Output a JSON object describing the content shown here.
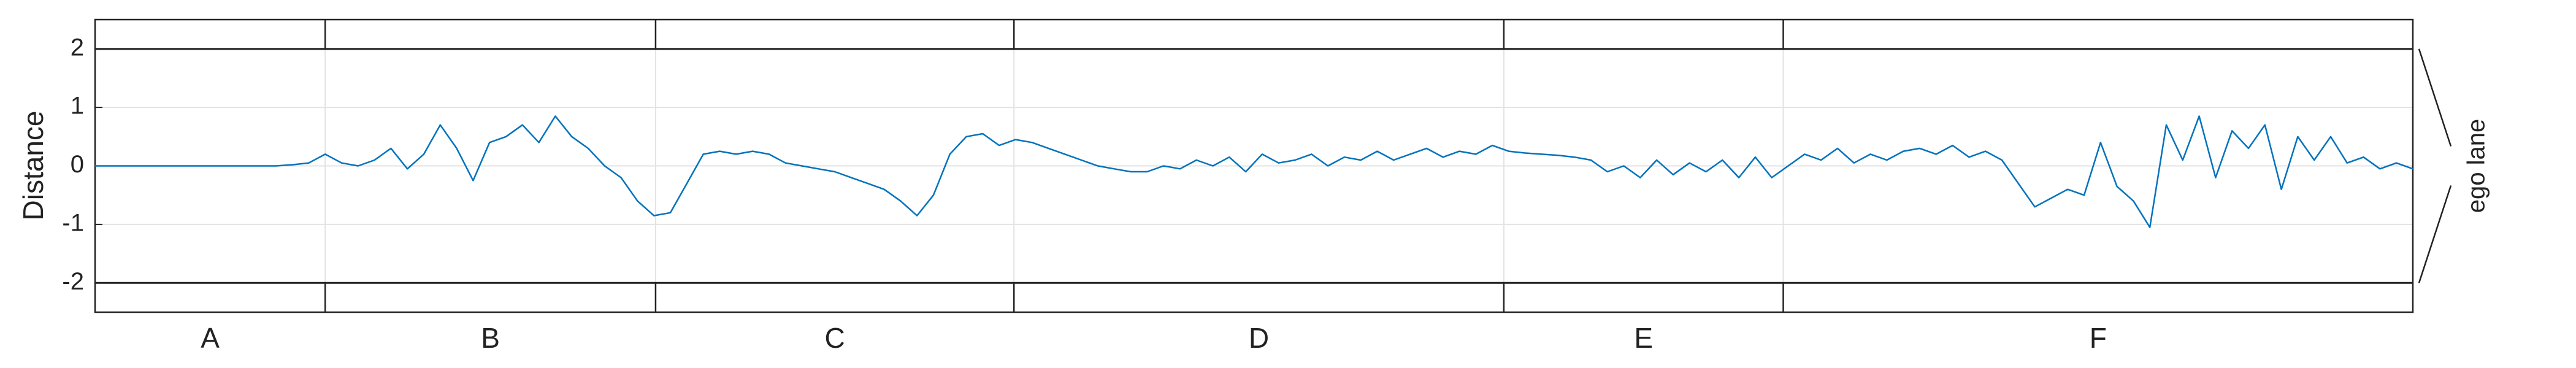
{
  "chart_data": {
    "type": "line",
    "y_label": "Distance",
    "band_label": "ego lane",
    "x": [
      0,
      1,
      2,
      3,
      4,
      5,
      6,
      7,
      8,
      9,
      10,
      11,
      12,
      13,
      14,
      15,
      16,
      17,
      18,
      19,
      20,
      21,
      22,
      23,
      24,
      25,
      26,
      27,
      28,
      29,
      30,
      31,
      32,
      33,
      34,
      35,
      36,
      37,
      38,
      39,
      40,
      41,
      42,
      43,
      44,
      45,
      46,
      47,
      48,
      49,
      50,
      51,
      52,
      53,
      54,
      55,
      56,
      57,
      58,
      59,
      60,
      61,
      62,
      63,
      64,
      65,
      66,
      67,
      68,
      69,
      70,
      71,
      72,
      73,
      74,
      75,
      76,
      77,
      78,
      79,
      80,
      81,
      82,
      83,
      84,
      85,
      86,
      87,
      88,
      89,
      90,
      91,
      92,
      93,
      94,
      95,
      96,
      97,
      98,
      99,
      100,
      101,
      102,
      103,
      104,
      105,
      106,
      107,
      108,
      109,
      110,
      111,
      112,
      113,
      114,
      115,
      116,
      117,
      118,
      119,
      120,
      121,
      122,
      123,
      124,
      125,
      126,
      127,
      128,
      129,
      130,
      131,
      132,
      133,
      134,
      135,
      136,
      137,
      138,
      139,
      140,
      141
    ],
    "values": [
      0,
      0,
      0,
      0,
      0,
      0,
      0,
      0,
      0,
      0,
      0,
      0,
      0.02,
      0.05,
      0.2,
      0.05,
      0.0,
      0.1,
      0.3,
      -0.05,
      0.2,
      0.7,
      0.3,
      -0.25,
      0.4,
      0.5,
      0.7,
      0.4,
      0.85,
      0.5,
      0.3,
      0.0,
      -0.2,
      -0.6,
      -0.85,
      -0.8,
      -0.3,
      0.2,
      0.25,
      0.2,
      0.25,
      0.2,
      0.05,
      0.0,
      -0.05,
      -0.1,
      -0.2,
      -0.3,
      -0.4,
      -0.6,
      -0.85,
      -0.5,
      0.2,
      0.5,
      0.55,
      0.35,
      0.45,
      0.4,
      0.3,
      0.2,
      0.1,
      0.0,
      -0.05,
      -0.1,
      -0.1,
      0.0,
      -0.05,
      0.1,
      0.0,
      0.15,
      -0.1,
      0.2,
      0.05,
      0.1,
      0.2,
      0.0,
      0.15,
      0.1,
      0.25,
      0.1,
      0.2,
      0.3,
      0.15,
      0.25,
      0.2,
      0.35,
      0.25,
      0.22,
      0.2,
      0.18,
      0.15,
      0.1,
      -0.1,
      0.0,
      -0.2,
      0.1,
      -0.15,
      0.05,
      -0.1,
      0.1,
      -0.2,
      0.15,
      -0.2,
      0.0,
      0.2,
      0.1,
      0.3,
      0.05,
      0.2,
      0.1,
      0.25,
      0.3,
      0.2,
      0.35,
      0.15,
      0.25,
      0.1,
      -0.3,
      -0.7,
      -0.55,
      -0.4,
      -0.5,
      0.4,
      -0.35,
      -0.6,
      -1.05,
      0.7,
      0.1,
      0.85,
      -0.2,
      0.6,
      0.3,
      0.7,
      -0.4,
      0.5,
      0.1,
      0.5,
      0.05,
      0.15,
      -0.05,
      0.05,
      -0.05
    ],
    "color": "#0072bd",
    "xlim": [
      0,
      141
    ],
    "ylim": [
      -2.5,
      2.5
    ],
    "yticks": [
      -2,
      -1,
      0,
      1,
      2
    ],
    "grid": true,
    "lane_bounds": [
      -2,
      2
    ],
    "segment_bounds": [
      0,
      14,
      34.1,
      55.9,
      85.7,
      102.7,
      141
    ],
    "segment_labels": [
      "A",
      "B",
      "C",
      "D",
      "E",
      "F"
    ]
  }
}
